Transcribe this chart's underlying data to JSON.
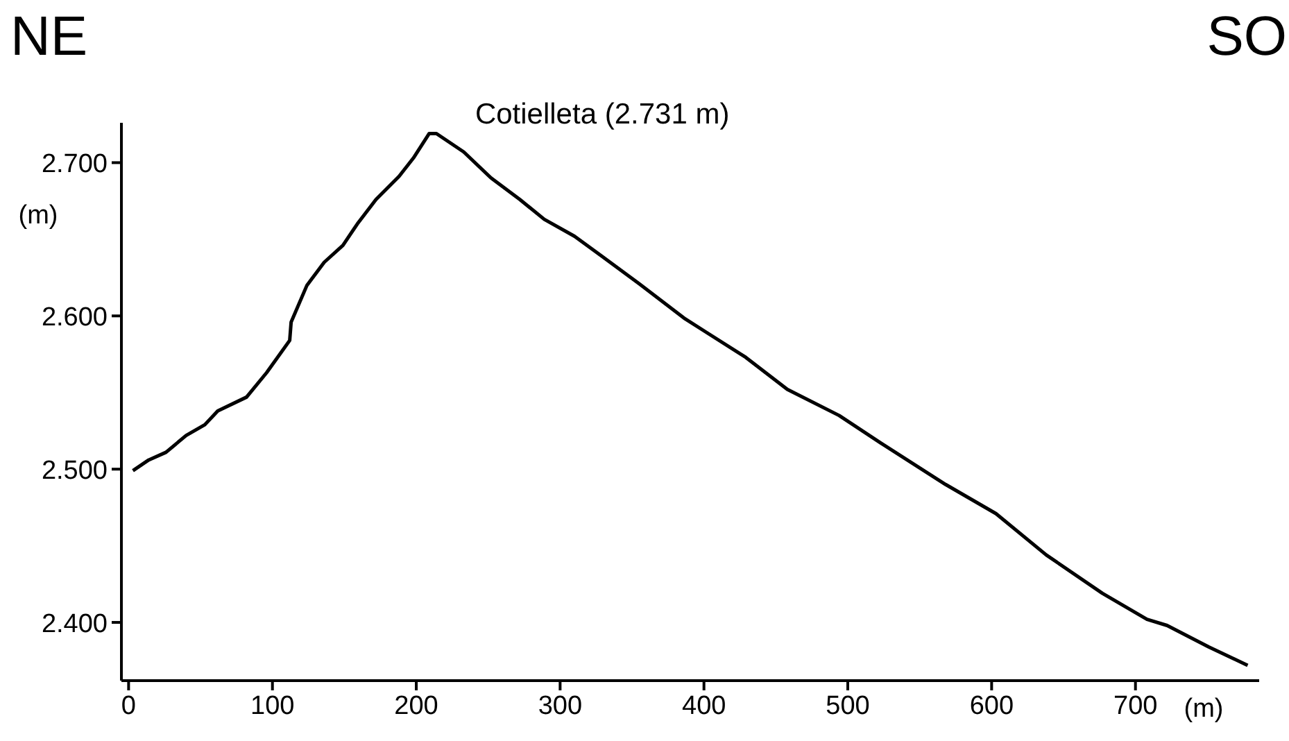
{
  "chart_data": {
    "type": "line",
    "xlabel": "(m)",
    "ylabel": "(m)",
    "x": [
      3,
      14,
      26,
      40,
      53,
      62,
      82,
      96,
      112,
      113,
      124,
      136,
      149,
      159,
      172,
      188,
      198,
      209,
      214,
      233,
      252,
      272,
      289,
      310,
      329,
      355,
      387,
      429,
      458,
      494,
      523,
      568,
      603,
      638,
      677,
      708,
      722,
      751,
      778
    ],
    "series": [
      {
        "color": "#000000",
        "values": [
          2499,
          2506,
          2511,
          2522,
          2529,
          2538,
          2547,
          2563,
          2584,
          2596,
          2620,
          2635,
          2646,
          2660,
          2676,
          2691,
          2703,
          2719,
          2719,
          2707,
          2690,
          2676,
          2663,
          2652,
          2639,
          2621,
          2598,
          2573,
          2552,
          2535,
          2517,
          2490,
          2471,
          2444,
          2419,
          2402,
          2398,
          2384,
          2372
        ]
      }
    ],
    "xlim": [
      -5,
      786
    ],
    "ylim": [
      2362,
      2726
    ],
    "xticks": [
      0,
      100,
      200,
      300,
      400,
      500,
      600,
      700
    ],
    "yticks": [
      {
        "value": 2400,
        "label": "2.400"
      },
      {
        "value": 2500,
        "label": "2.500"
      },
      {
        "value": 2600,
        "label": "2.600"
      },
      {
        "value": 2700,
        "label": "2.700"
      }
    ],
    "grid": false,
    "marker": "none",
    "line_style": "solid",
    "annotations": [
      {
        "text": "Cotielleta (2.731 m)",
        "x": 212,
        "y": 2719
      },
      "NE",
      "SO"
    ]
  }
}
